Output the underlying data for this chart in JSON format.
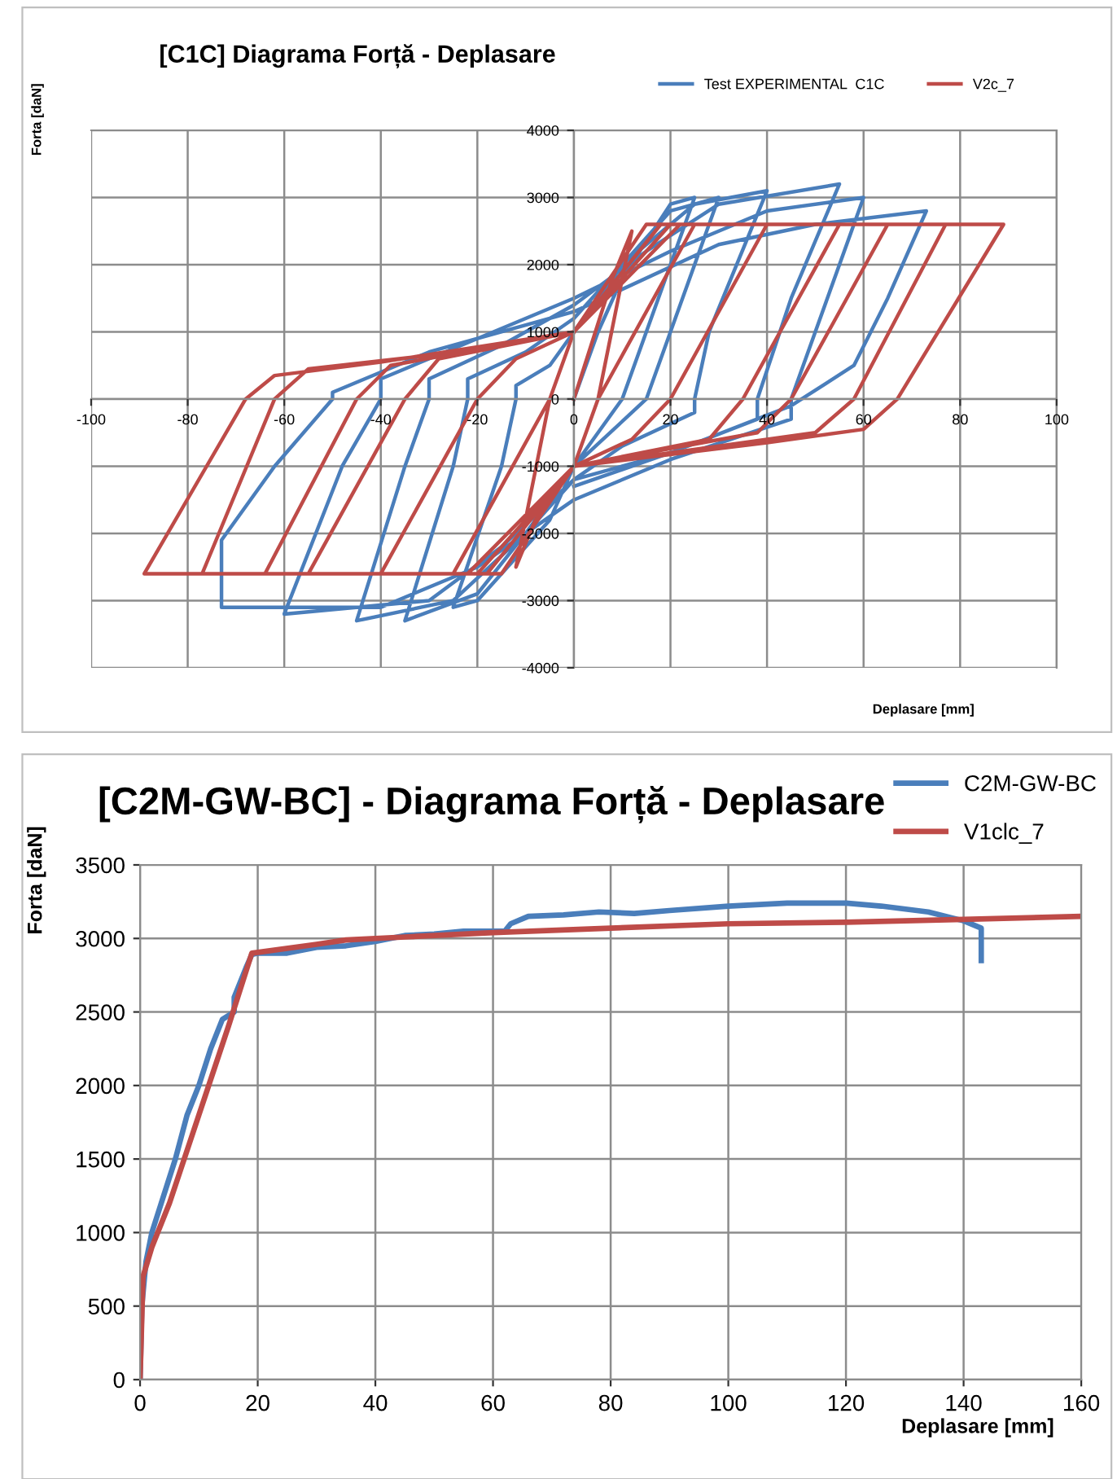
{
  "chart_data": [
    {
      "type": "line",
      "title": "[C1C] Diagrama Forță - Deplasare",
      "xlabel": "Deplasare [mm]",
      "ylabel": "Forta [daN]",
      "xlim": [
        -100,
        100
      ],
      "xticks": [
        -100,
        -80,
        -60,
        -40,
        -20,
        0,
        20,
        40,
        60,
        80,
        100
      ],
      "ylim": [
        -4000,
        4000
      ],
      "yticks": [
        -4000,
        -3000,
        -2000,
        -1000,
        0,
        1000,
        2000,
        3000,
        4000
      ],
      "grid": true,
      "legend": "top right",
      "series": [
        {
          "name": "Test EXPERIMENTAL  C1C",
          "color": "#4a7ebb",
          "x": [
            0,
            5,
            10,
            20,
            25,
            15,
            10,
            5,
            0,
            -5,
            -15,
            -20,
            -25,
            -15,
            -12,
            -12,
            -5,
            0,
            10,
            20,
            30,
            20,
            15,
            0,
            -10,
            -20,
            -35,
            -25,
            -22,
            -22,
            -10,
            0,
            10,
            25,
            40,
            28,
            25,
            25,
            10,
            0,
            -10,
            -25,
            -45,
            -35,
            -30,
            -30,
            -15,
            0,
            15,
            30,
            55,
            45,
            38,
            38,
            20,
            0,
            -15,
            -30,
            -60,
            -48,
            -40,
            -40,
            -20,
            0,
            20,
            40,
            60,
            50,
            45,
            45,
            20,
            0,
            -20,
            -40,
            -73,
            -73,
            -62,
            -50,
            -50,
            -30,
            0,
            30,
            50,
            73,
            65,
            58,
            45,
            20,
            0
          ],
          "values": [
            0,
            1000,
            1800,
            2900,
            3000,
            1000,
            0,
            -500,
            -1000,
            -1800,
            -2600,
            -3000,
            -3100,
            -1000,
            0,
            200,
            500,
            1000,
            2000,
            2800,
            3000,
            1000,
            0,
            -1000,
            -2000,
            -2900,
            -3300,
            -1000,
            0,
            300,
            700,
            1200,
            2000,
            2900,
            3100,
            1000,
            0,
            -200,
            -700,
            -1200,
            -2000,
            -3000,
            -3300,
            -1000,
            0,
            300,
            800,
            1400,
            2200,
            2900,
            3200,
            1500,
            0,
            -300,
            -800,
            -1200,
            -2200,
            -3000,
            -3200,
            -1000,
            0,
            300,
            900,
            1500,
            2200,
            2800,
            3000,
            1000,
            0,
            -300,
            -900,
            -1500,
            -2500,
            -3100,
            -3100,
            -2100,
            -1000,
            0,
            100,
            700,
            1300,
            2300,
            2600,
            2800,
            1500,
            500,
            -100,
            -800,
            -1300
          ]
        },
        {
          "name": "V2c_7",
          "color": "#be4b48",
          "x": [
            0,
            8,
            12,
            5,
            0,
            -8,
            -12,
            -5,
            0,
            15,
            25,
            5,
            0,
            -15,
            -25,
            -5,
            0,
            15,
            40,
            20,
            12,
            0,
            -15,
            -40,
            -20,
            -12,
            0,
            15,
            55,
            35,
            28,
            0,
            -15,
            -55,
            -35,
            -28,
            0,
            18,
            65,
            45,
            38,
            0,
            -18,
            -64,
            -45,
            -38,
            0,
            20,
            77,
            58,
            50,
            20,
            0,
            -20,
            -77,
            -62,
            -55,
            -30,
            0,
            22,
            89,
            67,
            60,
            40,
            0,
            -22,
            -89,
            -68,
            -62,
            -40,
            0
          ],
          "values": [
            0,
            1800,
            2500,
            0,
            -1000,
            -1800,
            -2500,
            0,
            1000,
            2600,
            2600,
            0,
            -1000,
            -2600,
            -2600,
            0,
            1000,
            2600,
            2600,
            0,
            -600,
            -1000,
            -2600,
            -2600,
            0,
            600,
            1000,
            2600,
            2600,
            0,
            -600,
            -1000,
            -2600,
            -2600,
            0,
            600,
            1000,
            2600,
            2600,
            0,
            -500,
            -1000,
            -2600,
            -2600,
            0,
            500,
            1000,
            2600,
            2600,
            0,
            -500,
            -800,
            -1000,
            -2600,
            -2600,
            0,
            450,
            650,
            1000,
            2600,
            2600,
            0,
            -450,
            -650,
            -1000,
            -2600,
            -2600,
            0,
            350,
            550,
            1000
          ]
        }
      ]
    },
    {
      "type": "line",
      "title": "[C2M-GW-BC] - Diagrama Forță - Deplasare",
      "xlabel": "Deplasare [mm]",
      "ylabel": "Forta [daN]",
      "xlim": [
        0,
        160
      ],
      "xticks": [
        0,
        20,
        40,
        60,
        80,
        100,
        120,
        140,
        160
      ],
      "ylim": [
        0,
        3500
      ],
      "yticks": [
        0,
        500,
        1000,
        1500,
        2000,
        2500,
        3000,
        3500
      ],
      "grid": true,
      "legend": "top right",
      "series": [
        {
          "name": "C2M-GW-BC",
          "color": "#4a7ebb",
          "x": [
            0,
            0.3,
            1,
            2,
            4,
            6,
            8,
            10,
            12,
            14,
            16,
            16,
            18,
            19,
            20,
            25,
            30,
            35,
            40,
            45,
            50,
            55,
            60,
            62,
            63,
            66,
            72,
            78,
            84,
            90,
            100,
            110,
            120,
            126,
            134,
            140,
            143,
            143
          ],
          "values": [
            0,
            500,
            800,
            1000,
            1250,
            1500,
            1800,
            2000,
            2250,
            2450,
            2500,
            2600,
            2800,
            2890,
            2900,
            2900,
            2940,
            2950,
            2980,
            3020,
            3030,
            3050,
            3050,
            3050,
            3100,
            3150,
            3160,
            3180,
            3170,
            3190,
            3220,
            3240,
            3240,
            3220,
            3180,
            3120,
            3070,
            2850
          ]
        },
        {
          "name": "V1clc_7",
          "color": "#be4b48",
          "x": [
            0,
            0.5,
            2,
            5,
            10,
            15,
            19,
            30,
            35,
            45,
            60,
            80,
            100,
            120,
            140,
            160
          ],
          "values": [
            0,
            700,
            900,
            1200,
            1800,
            2400,
            2900,
            2960,
            2990,
            3010,
            3040,
            3070,
            3100,
            3110,
            3130,
            3150
          ]
        }
      ]
    }
  ]
}
